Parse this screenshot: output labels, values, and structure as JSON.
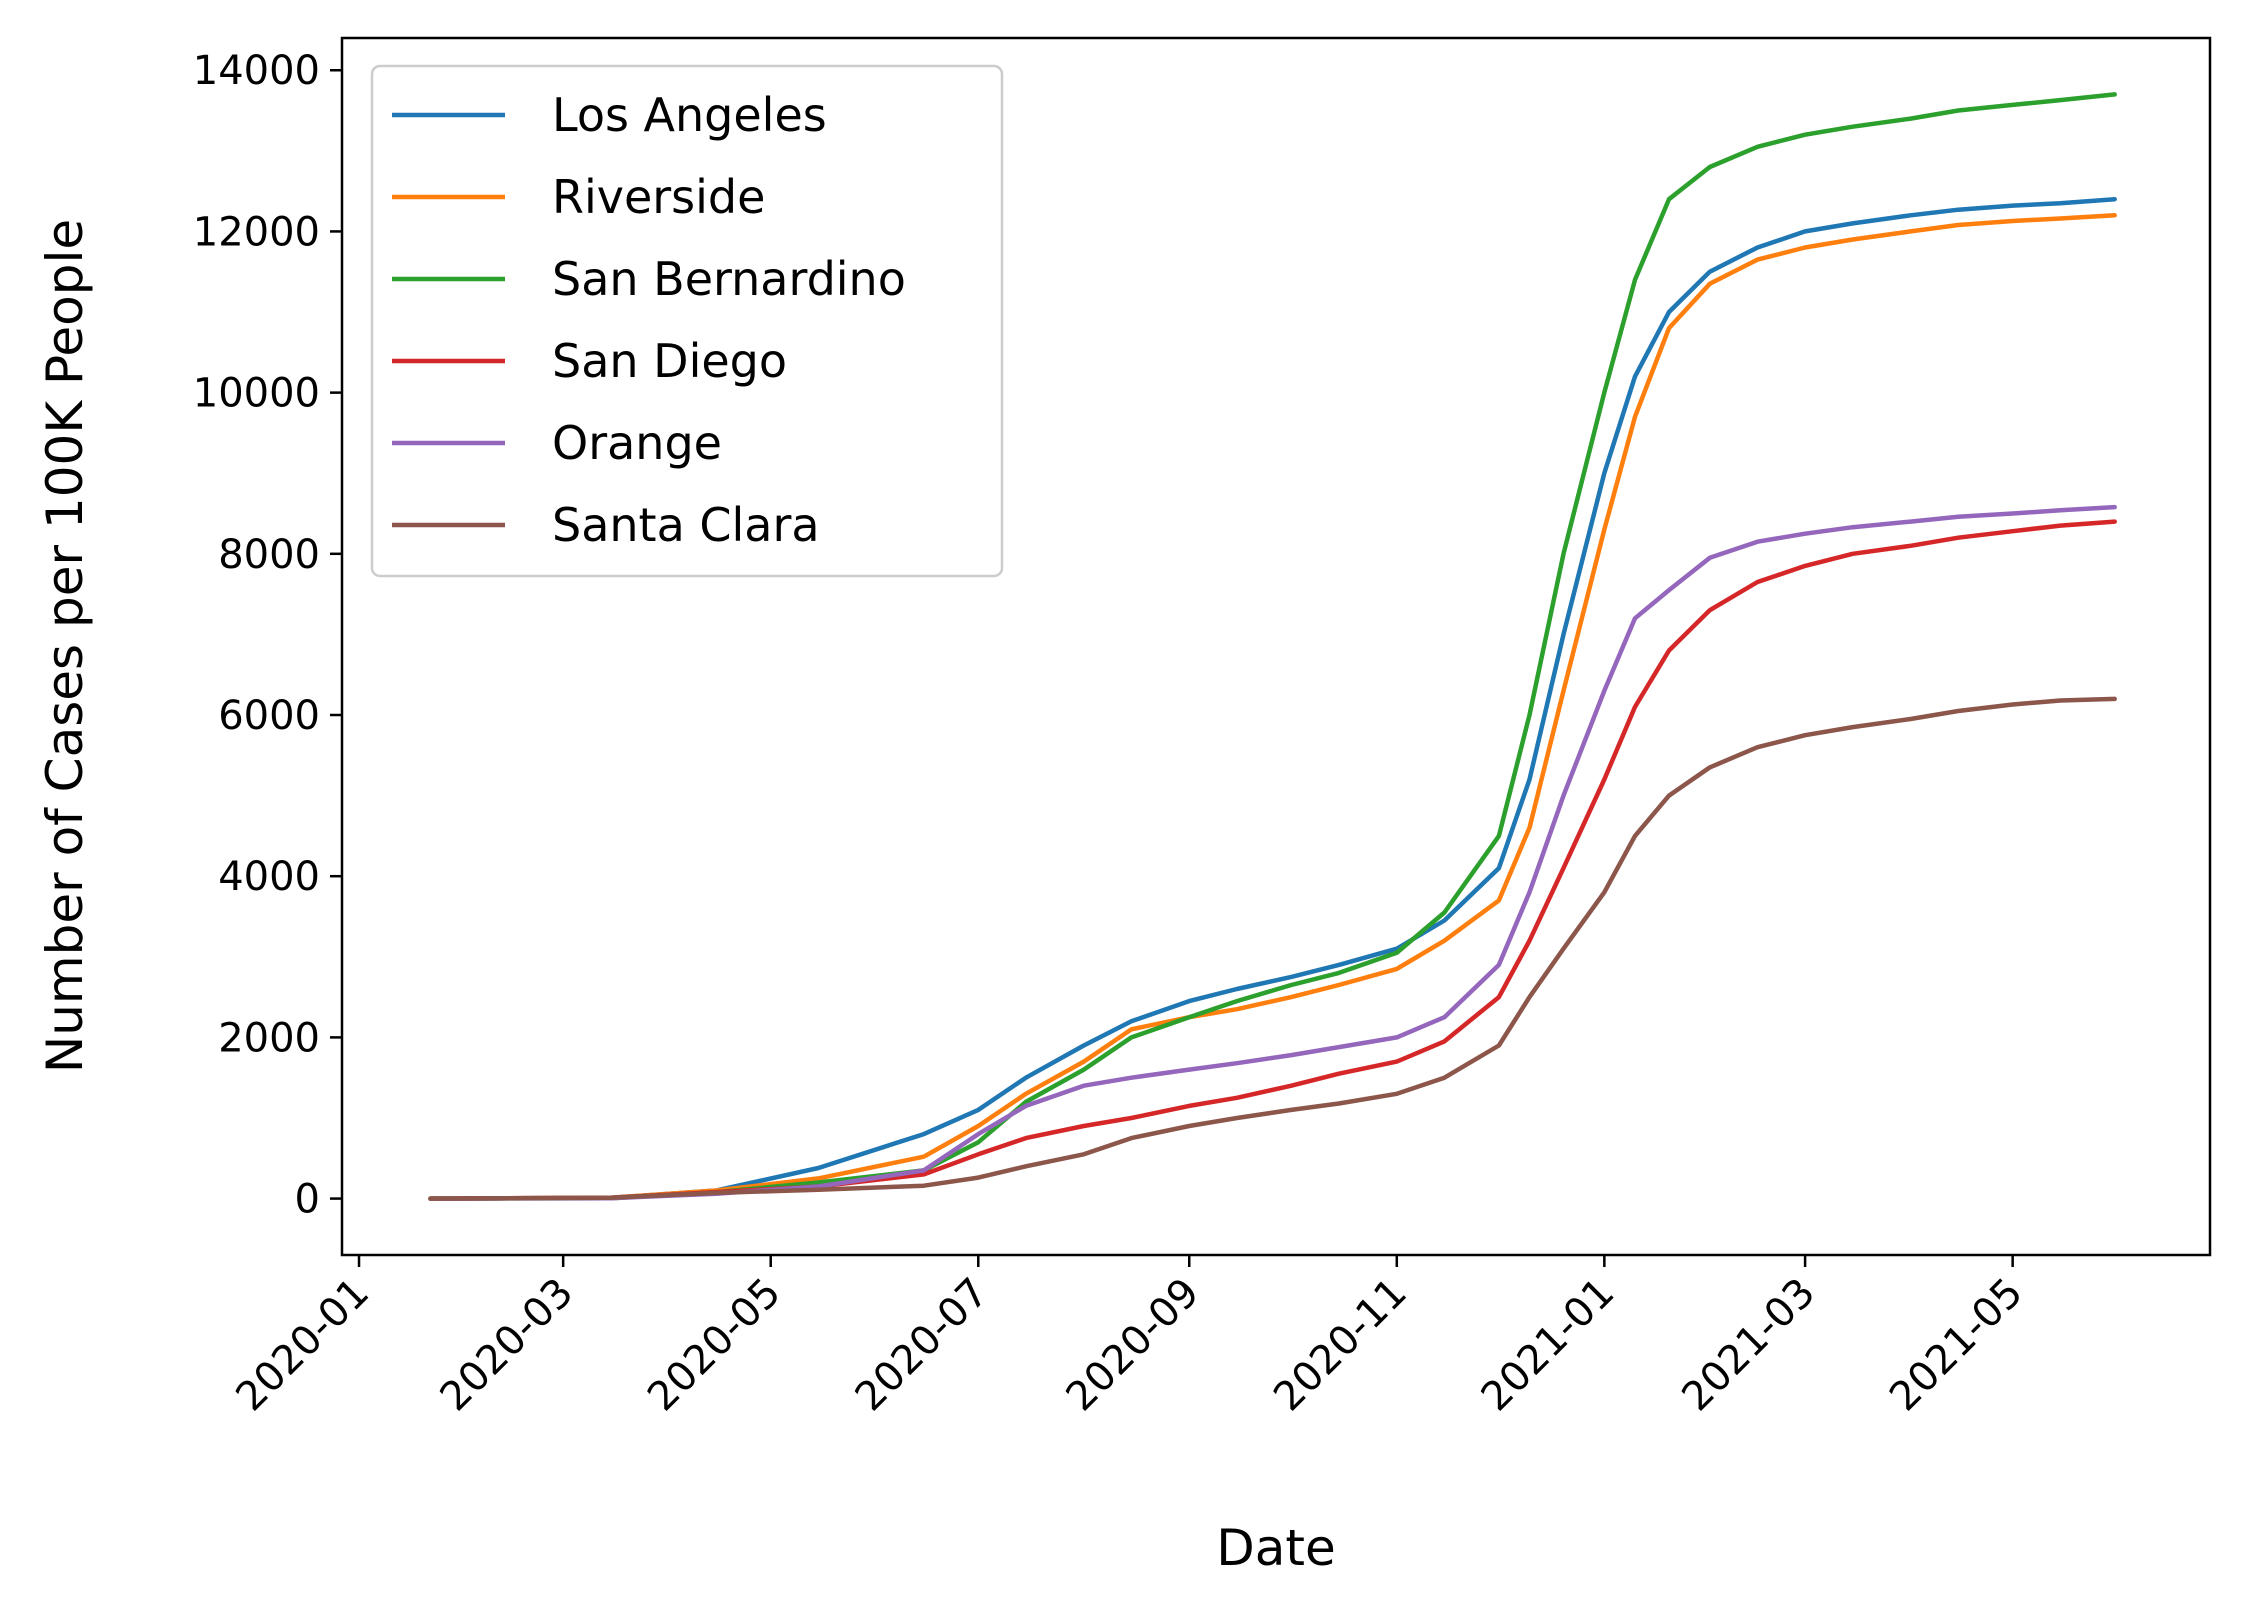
{
  "chart_data": {
    "type": "line",
    "title": "",
    "xlabel": "Date",
    "ylabel": "Number of Cases per 100K People",
    "x_ticks": [
      "2020-01",
      "2020-03",
      "2020-05",
      "2020-07",
      "2020-09",
      "2020-11",
      "2021-01",
      "2021-03",
      "2021-05"
    ],
    "y_ticks": [
      0,
      2000,
      4000,
      6000,
      8000,
      10000,
      12000,
      14000
    ],
    "xlim": [
      "2019-12-27",
      "2021-06-28"
    ],
    "ylim": [
      -700,
      14400
    ],
    "grid": false,
    "legend_position": "upper-left",
    "series": [
      {
        "name": "Los Angeles",
        "color": "#1f77b4",
        "points": [
          [
            "2020-01-22",
            0
          ],
          [
            "2020-03-15",
            10
          ],
          [
            "2020-04-15",
            100
          ],
          [
            "2020-05-15",
            380
          ],
          [
            "2020-06-15",
            800
          ],
          [
            "2020-07-01",
            1100
          ],
          [
            "2020-07-15",
            1500
          ],
          [
            "2020-08-01",
            1900
          ],
          [
            "2020-08-15",
            2200
          ],
          [
            "2020-09-01",
            2450
          ],
          [
            "2020-09-15",
            2600
          ],
          [
            "2020-10-01",
            2750
          ],
          [
            "2020-10-15",
            2900
          ],
          [
            "2020-11-01",
            3100
          ],
          [
            "2020-11-15",
            3450
          ],
          [
            "2020-12-01",
            4100
          ],
          [
            "2020-12-10",
            5200
          ],
          [
            "2020-12-20",
            7000
          ],
          [
            "2021-01-01",
            9000
          ],
          [
            "2021-01-10",
            10200
          ],
          [
            "2021-01-20",
            11000
          ],
          [
            "2021-02-01",
            11500
          ],
          [
            "2021-02-15",
            11800
          ],
          [
            "2021-03-01",
            12000
          ],
          [
            "2021-03-15",
            12100
          ],
          [
            "2021-04-01",
            12200
          ],
          [
            "2021-04-15",
            12270
          ],
          [
            "2021-05-01",
            12320
          ],
          [
            "2021-05-15",
            12350
          ],
          [
            "2021-05-31",
            12400
          ]
        ]
      },
      {
        "name": "Riverside",
        "color": "#ff7f0e",
        "points": [
          [
            "2020-01-22",
            0
          ],
          [
            "2020-03-15",
            10
          ],
          [
            "2020-04-15",
            100
          ],
          [
            "2020-05-15",
            250
          ],
          [
            "2020-06-15",
            520
          ],
          [
            "2020-07-01",
            900
          ],
          [
            "2020-07-15",
            1300
          ],
          [
            "2020-08-01",
            1700
          ],
          [
            "2020-08-15",
            2100
          ],
          [
            "2020-09-01",
            2250
          ],
          [
            "2020-09-15",
            2350
          ],
          [
            "2020-10-01",
            2500
          ],
          [
            "2020-10-15",
            2650
          ],
          [
            "2020-11-01",
            2850
          ],
          [
            "2020-11-15",
            3200
          ],
          [
            "2020-12-01",
            3700
          ],
          [
            "2020-12-10",
            4600
          ],
          [
            "2020-12-20",
            6300
          ],
          [
            "2021-01-01",
            8300
          ],
          [
            "2021-01-10",
            9700
          ],
          [
            "2021-01-20",
            10800
          ],
          [
            "2021-02-01",
            11350
          ],
          [
            "2021-02-15",
            11650
          ],
          [
            "2021-03-01",
            11800
          ],
          [
            "2021-03-15",
            11900
          ],
          [
            "2021-04-01",
            12000
          ],
          [
            "2021-04-15",
            12080
          ],
          [
            "2021-05-01",
            12130
          ],
          [
            "2021-05-15",
            12160
          ],
          [
            "2021-05-31",
            12200
          ]
        ]
      },
      {
        "name": "San Bernardino",
        "color": "#2ca02c",
        "points": [
          [
            "2020-01-22",
            0
          ],
          [
            "2020-03-15",
            5
          ],
          [
            "2020-04-15",
            80
          ],
          [
            "2020-05-15",
            200
          ],
          [
            "2020-06-15",
            350
          ],
          [
            "2020-07-01",
            700
          ],
          [
            "2020-07-15",
            1200
          ],
          [
            "2020-08-01",
            1600
          ],
          [
            "2020-08-15",
            2000
          ],
          [
            "2020-09-01",
            2250
          ],
          [
            "2020-09-15",
            2450
          ],
          [
            "2020-10-01",
            2650
          ],
          [
            "2020-10-15",
            2800
          ],
          [
            "2020-11-01",
            3050
          ],
          [
            "2020-11-15",
            3550
          ],
          [
            "2020-12-01",
            4500
          ],
          [
            "2020-12-10",
            6000
          ],
          [
            "2020-12-20",
            8000
          ],
          [
            "2021-01-01",
            10000
          ],
          [
            "2021-01-10",
            11400
          ],
          [
            "2021-01-20",
            12400
          ],
          [
            "2021-02-01",
            12800
          ],
          [
            "2021-02-15",
            13050
          ],
          [
            "2021-03-01",
            13200
          ],
          [
            "2021-03-15",
            13300
          ],
          [
            "2021-04-01",
            13400
          ],
          [
            "2021-04-15",
            13500
          ],
          [
            "2021-05-01",
            13570
          ],
          [
            "2021-05-15",
            13630
          ],
          [
            "2021-05-31",
            13700
          ]
        ]
      },
      {
        "name": "San Diego",
        "color": "#d62728",
        "points": [
          [
            "2020-01-22",
            0
          ],
          [
            "2020-03-15",
            10
          ],
          [
            "2020-04-15",
            80
          ],
          [
            "2020-05-15",
            150
          ],
          [
            "2020-06-15",
            300
          ],
          [
            "2020-07-01",
            550
          ],
          [
            "2020-07-15",
            750
          ],
          [
            "2020-08-01",
            900
          ],
          [
            "2020-08-15",
            1000
          ],
          [
            "2020-09-01",
            1150
          ],
          [
            "2020-09-15",
            1250
          ],
          [
            "2020-10-01",
            1400
          ],
          [
            "2020-10-15",
            1550
          ],
          [
            "2020-11-01",
            1700
          ],
          [
            "2020-11-15",
            1950
          ],
          [
            "2020-12-01",
            2500
          ],
          [
            "2020-12-10",
            3200
          ],
          [
            "2020-12-20",
            4100
          ],
          [
            "2021-01-01",
            5200
          ],
          [
            "2021-01-10",
            6100
          ],
          [
            "2021-01-20",
            6800
          ],
          [
            "2021-02-01",
            7300
          ],
          [
            "2021-02-15",
            7650
          ],
          [
            "2021-03-01",
            7850
          ],
          [
            "2021-03-15",
            8000
          ],
          [
            "2021-04-01",
            8100
          ],
          [
            "2021-04-15",
            8200
          ],
          [
            "2021-05-01",
            8280
          ],
          [
            "2021-05-15",
            8350
          ],
          [
            "2021-05-31",
            8400
          ]
        ]
      },
      {
        "name": "Orange",
        "color": "#9467bd",
        "points": [
          [
            "2020-01-22",
            0
          ],
          [
            "2020-03-15",
            5
          ],
          [
            "2020-04-15",
            60
          ],
          [
            "2020-05-15",
            150
          ],
          [
            "2020-06-15",
            350
          ],
          [
            "2020-07-01",
            800
          ],
          [
            "2020-07-15",
            1150
          ],
          [
            "2020-08-01",
            1400
          ],
          [
            "2020-08-15",
            1500
          ],
          [
            "2020-09-01",
            1600
          ],
          [
            "2020-09-15",
            1680
          ],
          [
            "2020-10-01",
            1780
          ],
          [
            "2020-10-15",
            1880
          ],
          [
            "2020-11-01",
            2000
          ],
          [
            "2020-11-15",
            2250
          ],
          [
            "2020-12-01",
            2900
          ],
          [
            "2020-12-10",
            3800
          ],
          [
            "2020-12-20",
            5000
          ],
          [
            "2021-01-01",
            6300
          ],
          [
            "2021-01-10",
            7200
          ],
          [
            "2021-01-20",
            7550
          ],
          [
            "2021-02-01",
            7950
          ],
          [
            "2021-02-15",
            8150
          ],
          [
            "2021-03-01",
            8250
          ],
          [
            "2021-03-15",
            8330
          ],
          [
            "2021-04-01",
            8400
          ],
          [
            "2021-04-15",
            8460
          ],
          [
            "2021-05-01",
            8500
          ],
          [
            "2021-05-15",
            8540
          ],
          [
            "2021-05-31",
            8580
          ]
        ]
      },
      {
        "name": "Santa Clara",
        "color": "#8c564b",
        "points": [
          [
            "2020-01-22",
            0
          ],
          [
            "2020-03-15",
            10
          ],
          [
            "2020-04-15",
            70
          ],
          [
            "2020-05-15",
            110
          ],
          [
            "2020-06-15",
            160
          ],
          [
            "2020-07-01",
            260
          ],
          [
            "2020-07-15",
            400
          ],
          [
            "2020-08-01",
            550
          ],
          [
            "2020-08-15",
            750
          ],
          [
            "2020-09-01",
            900
          ],
          [
            "2020-09-15",
            1000
          ],
          [
            "2020-10-01",
            1100
          ],
          [
            "2020-10-15",
            1180
          ],
          [
            "2020-11-01",
            1300
          ],
          [
            "2020-11-15",
            1500
          ],
          [
            "2020-12-01",
            1900
          ],
          [
            "2020-12-10",
            2500
          ],
          [
            "2020-12-20",
            3100
          ],
          [
            "2021-01-01",
            3800
          ],
          [
            "2021-01-10",
            4500
          ],
          [
            "2021-01-20",
            5000
          ],
          [
            "2021-02-01",
            5350
          ],
          [
            "2021-02-15",
            5600
          ],
          [
            "2021-03-01",
            5750
          ],
          [
            "2021-03-15",
            5850
          ],
          [
            "2021-04-01",
            5950
          ],
          [
            "2021-04-15",
            6050
          ],
          [
            "2021-05-01",
            6130
          ],
          [
            "2021-05-15",
            6180
          ],
          [
            "2021-05-31",
            6200
          ]
        ]
      }
    ]
  }
}
